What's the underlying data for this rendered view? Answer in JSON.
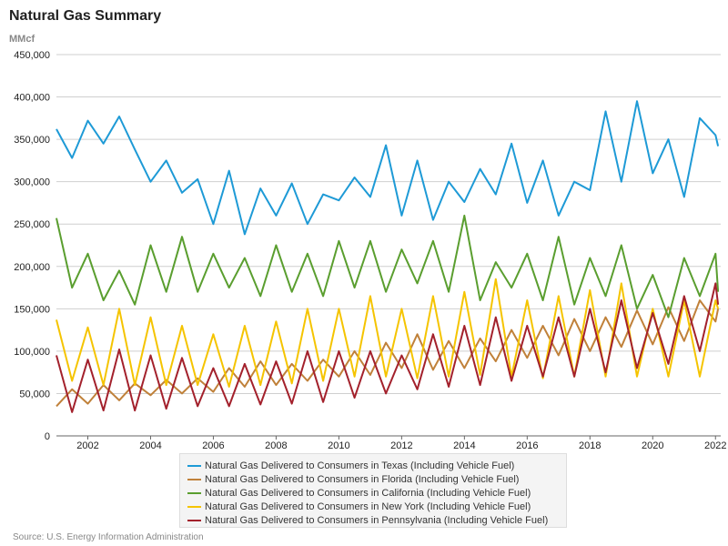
{
  "title": "Natural Gas Summary",
  "units": "MMcf",
  "source": "Source: U.S. Energy Information Administration",
  "chart_data": {
    "type": "line",
    "title": "Natural Gas Summary",
    "ylabel": "MMcf",
    "xlabel": "",
    "ylim": [
      0,
      450000
    ],
    "xlim": [
      "2001-01",
      "2022-03"
    ],
    "yticks": [
      0,
      50000,
      100000,
      150000,
      200000,
      250000,
      300000,
      350000,
      400000,
      450000
    ],
    "ytick_labels": [
      "0",
      "50,000",
      "100,000",
      "150,000",
      "200,000",
      "250,000",
      "300,000",
      "350,000",
      "400,000",
      "450,000"
    ],
    "xticks": [
      "2002",
      "2004",
      "2006",
      "2008",
      "2010",
      "2012",
      "2014",
      "2016",
      "2018",
      "2020",
      "2022"
    ],
    "grid": "horizontal",
    "legend": "bottom",
    "series": [
      {
        "name": "Natural Gas Delivered to Consumers in Texas (Including Vehicle Fuel)",
        "color": "#1e9ad6",
        "points": [
          [
            "2001-01",
            362000
          ],
          [
            "2001-07",
            328000
          ],
          [
            "2002-01",
            372000
          ],
          [
            "2002-07",
            345000
          ],
          [
            "2003-01",
            377000
          ],
          [
            "2003-07",
            338000
          ],
          [
            "2004-01",
            300000
          ],
          [
            "2004-07",
            325000
          ],
          [
            "2005-01",
            287000
          ],
          [
            "2005-07",
            303000
          ],
          [
            "2006-01",
            250000
          ],
          [
            "2006-07",
            313000
          ],
          [
            "2007-01",
            238000
          ],
          [
            "2007-07",
            292000
          ],
          [
            "2008-01",
            260000
          ],
          [
            "2008-07",
            298000
          ],
          [
            "2009-01",
            250000
          ],
          [
            "2009-07",
            285000
          ],
          [
            "2010-01",
            278000
          ],
          [
            "2010-07",
            305000
          ],
          [
            "2011-01",
            282000
          ],
          [
            "2011-07",
            343000
          ],
          [
            "2012-01",
            260000
          ],
          [
            "2012-07",
            325000
          ],
          [
            "2013-01",
            255000
          ],
          [
            "2013-07",
            300000
          ],
          [
            "2014-01",
            276000
          ],
          [
            "2014-07",
            315000
          ],
          [
            "2015-01",
            285000
          ],
          [
            "2015-07",
            345000
          ],
          [
            "2016-01",
            275000
          ],
          [
            "2016-07",
            325000
          ],
          [
            "2017-01",
            260000
          ],
          [
            "2017-07",
            300000
          ],
          [
            "2018-01",
            290000
          ],
          [
            "2018-07",
            383000
          ],
          [
            "2019-01",
            300000
          ],
          [
            "2019-07",
            395000
          ],
          [
            "2020-01",
            310000
          ],
          [
            "2020-07",
            350000
          ],
          [
            "2021-01",
            282000
          ],
          [
            "2021-07",
            375000
          ],
          [
            "2022-01",
            355000
          ],
          [
            "2022-02",
            342000
          ]
        ]
      },
      {
        "name": "Natural Gas Delivered to Consumers in Florida (Including Vehicle Fuel)",
        "color": "#c0813a",
        "points": [
          [
            "2001-01",
            35000
          ],
          [
            "2001-07",
            55000
          ],
          [
            "2002-01",
            38000
          ],
          [
            "2002-07",
            60000
          ],
          [
            "2003-01",
            42000
          ],
          [
            "2003-07",
            62000
          ],
          [
            "2004-01",
            48000
          ],
          [
            "2004-07",
            66000
          ],
          [
            "2005-01",
            50000
          ],
          [
            "2005-07",
            68000
          ],
          [
            "2006-01",
            52000
          ],
          [
            "2006-07",
            80000
          ],
          [
            "2007-01",
            58000
          ],
          [
            "2007-07",
            88000
          ],
          [
            "2008-01",
            60000
          ],
          [
            "2008-07",
            85000
          ],
          [
            "2009-01",
            65000
          ],
          [
            "2009-07",
            90000
          ],
          [
            "2010-01",
            70000
          ],
          [
            "2010-07",
            100000
          ],
          [
            "2011-01",
            72000
          ],
          [
            "2011-07",
            110000
          ],
          [
            "2012-01",
            80000
          ],
          [
            "2012-07",
            120000
          ],
          [
            "2013-01",
            78000
          ],
          [
            "2013-07",
            112000
          ],
          [
            "2014-01",
            80000
          ],
          [
            "2014-07",
            115000
          ],
          [
            "2015-01",
            88000
          ],
          [
            "2015-07",
            125000
          ],
          [
            "2016-01",
            92000
          ],
          [
            "2016-07",
            130000
          ],
          [
            "2017-01",
            95000
          ],
          [
            "2017-07",
            138000
          ],
          [
            "2018-01",
            100000
          ],
          [
            "2018-07",
            140000
          ],
          [
            "2019-01",
            105000
          ],
          [
            "2019-07",
            148000
          ],
          [
            "2020-01",
            108000
          ],
          [
            "2020-07",
            152000
          ],
          [
            "2021-01",
            112000
          ],
          [
            "2021-07",
            160000
          ],
          [
            "2022-01",
            135000
          ],
          [
            "2022-02",
            150000
          ]
        ]
      },
      {
        "name": "Natural Gas Delivered to Consumers in California (Including Vehicle Fuel)",
        "color": "#5a9e2f",
        "points": [
          [
            "2001-01",
            257000
          ],
          [
            "2001-07",
            175000
          ],
          [
            "2002-01",
            215000
          ],
          [
            "2002-07",
            160000
          ],
          [
            "2003-01",
            195000
          ],
          [
            "2003-07",
            155000
          ],
          [
            "2004-01",
            225000
          ],
          [
            "2004-07",
            170000
          ],
          [
            "2005-01",
            235000
          ],
          [
            "2005-07",
            170000
          ],
          [
            "2006-01",
            215000
          ],
          [
            "2006-07",
            175000
          ],
          [
            "2007-01",
            210000
          ],
          [
            "2007-07",
            165000
          ],
          [
            "2008-01",
            225000
          ],
          [
            "2008-07",
            170000
          ],
          [
            "2009-01",
            215000
          ],
          [
            "2009-07",
            165000
          ],
          [
            "2010-01",
            230000
          ],
          [
            "2010-07",
            175000
          ],
          [
            "2011-01",
            230000
          ],
          [
            "2011-07",
            170000
          ],
          [
            "2012-01",
            220000
          ],
          [
            "2012-07",
            180000
          ],
          [
            "2013-01",
            230000
          ],
          [
            "2013-07",
            170000
          ],
          [
            "2014-01",
            260000
          ],
          [
            "2014-07",
            160000
          ],
          [
            "2015-01",
            205000
          ],
          [
            "2015-07",
            175000
          ],
          [
            "2016-01",
            215000
          ],
          [
            "2016-07",
            160000
          ],
          [
            "2017-01",
            235000
          ],
          [
            "2017-07",
            155000
          ],
          [
            "2018-01",
            210000
          ],
          [
            "2018-07",
            165000
          ],
          [
            "2019-01",
            225000
          ],
          [
            "2019-07",
            150000
          ],
          [
            "2020-01",
            190000
          ],
          [
            "2020-07",
            140000
          ],
          [
            "2021-01",
            210000
          ],
          [
            "2021-07",
            165000
          ],
          [
            "2022-01",
            215000
          ],
          [
            "2022-02",
            170000
          ]
        ]
      },
      {
        "name": "Natural Gas Delivered to Consumers in New York (Including Vehicle Fuel)",
        "color": "#f5c400",
        "points": [
          [
            "2001-01",
            137000
          ],
          [
            "2001-07",
            65000
          ],
          [
            "2002-01",
            128000
          ],
          [
            "2002-07",
            60000
          ],
          [
            "2003-01",
            150000
          ],
          [
            "2003-07",
            60000
          ],
          [
            "2004-01",
            140000
          ],
          [
            "2004-07",
            60000
          ],
          [
            "2005-01",
            130000
          ],
          [
            "2005-07",
            60000
          ],
          [
            "2006-01",
            120000
          ],
          [
            "2006-07",
            58000
          ],
          [
            "2007-01",
            130000
          ],
          [
            "2007-07",
            60000
          ],
          [
            "2008-01",
            135000
          ],
          [
            "2008-07",
            62000
          ],
          [
            "2009-01",
            150000
          ],
          [
            "2009-07",
            65000
          ],
          [
            "2010-01",
            150000
          ],
          [
            "2010-07",
            70000
          ],
          [
            "2011-01",
            165000
          ],
          [
            "2011-07",
            70000
          ],
          [
            "2012-01",
            150000
          ],
          [
            "2012-07",
            68000
          ],
          [
            "2013-01",
            165000
          ],
          [
            "2013-07",
            70000
          ],
          [
            "2014-01",
            170000
          ],
          [
            "2014-07",
            72000
          ],
          [
            "2015-01",
            185000
          ],
          [
            "2015-07",
            70000
          ],
          [
            "2016-01",
            160000
          ],
          [
            "2016-07",
            68000
          ],
          [
            "2017-01",
            165000
          ],
          [
            "2017-07",
            70000
          ],
          [
            "2018-01",
            172000
          ],
          [
            "2018-07",
            70000
          ],
          [
            "2019-01",
            180000
          ],
          [
            "2019-07",
            70000
          ],
          [
            "2020-01",
            150000
          ],
          [
            "2020-07",
            70000
          ],
          [
            "2021-01",
            160000
          ],
          [
            "2021-07",
            70000
          ],
          [
            "2022-01",
            160000
          ],
          [
            "2022-02",
            150000
          ]
        ]
      },
      {
        "name": "Natural Gas Delivered to Consumers in Pennsylvania (Including Vehicle Fuel)",
        "color": "#a3212c",
        "points": [
          [
            "2001-01",
            95000
          ],
          [
            "2001-07",
            28000
          ],
          [
            "2002-01",
            90000
          ],
          [
            "2002-07",
            30000
          ],
          [
            "2003-01",
            102000
          ],
          [
            "2003-07",
            30000
          ],
          [
            "2004-01",
            95000
          ],
          [
            "2004-07",
            32000
          ],
          [
            "2005-01",
            92000
          ],
          [
            "2005-07",
            35000
          ],
          [
            "2006-01",
            80000
          ],
          [
            "2006-07",
            35000
          ],
          [
            "2007-01",
            85000
          ],
          [
            "2007-07",
            37000
          ],
          [
            "2008-01",
            88000
          ],
          [
            "2008-07",
            38000
          ],
          [
            "2009-01",
            100000
          ],
          [
            "2009-07",
            40000
          ],
          [
            "2010-01",
            100000
          ],
          [
            "2010-07",
            45000
          ],
          [
            "2011-01",
            100000
          ],
          [
            "2011-07",
            50000
          ],
          [
            "2012-01",
            95000
          ],
          [
            "2012-07",
            55000
          ],
          [
            "2013-01",
            120000
          ],
          [
            "2013-07",
            58000
          ],
          [
            "2014-01",
            130000
          ],
          [
            "2014-07",
            60000
          ],
          [
            "2015-01",
            140000
          ],
          [
            "2015-07",
            65000
          ],
          [
            "2016-01",
            130000
          ],
          [
            "2016-07",
            70000
          ],
          [
            "2017-01",
            140000
          ],
          [
            "2017-07",
            70000
          ],
          [
            "2018-01",
            150000
          ],
          [
            "2018-07",
            75000
          ],
          [
            "2019-01",
            160000
          ],
          [
            "2019-07",
            80000
          ],
          [
            "2020-01",
            145000
          ],
          [
            "2020-07",
            85000
          ],
          [
            "2021-01",
            165000
          ],
          [
            "2021-07",
            100000
          ],
          [
            "2022-01",
            180000
          ],
          [
            "2022-02",
            155000
          ]
        ]
      }
    ]
  }
}
